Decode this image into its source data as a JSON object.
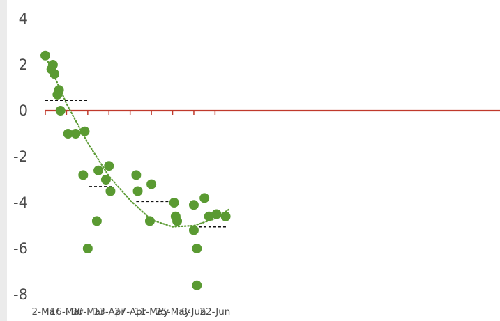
{
  "chart_data": {
    "type": "scatter",
    "title": "",
    "xlabel": "",
    "ylabel": "",
    "x_start_label": "2-Mar",
    "ylim": [
      -8,
      4
    ],
    "y_ticks": [
      4,
      2,
      0,
      -2,
      -4,
      -6,
      -8
    ],
    "x_ticks": [
      "2-Mar",
      "16-Mar",
      "30-Mar",
      "13-Apr",
      "27-Apr",
      "11-May",
      "25-May",
      "8-Jun",
      "22-Jun"
    ],
    "grid": false,
    "zero_line_color": "#c0392b",
    "marker_color": "#5a9a32",
    "trend_color": "#5a9a32",
    "step_line_color": "#111111",
    "series": [
      {
        "points": [
          {
            "x": "2-Mar",
            "y": 2.4
          },
          {
            "x": "6-Mar",
            "y": 1.8
          },
          {
            "x": "7-Mar",
            "y": 2.0
          },
          {
            "x": "8-Mar",
            "y": 1.6
          },
          {
            "x": "10-Mar",
            "y": 0.7
          },
          {
            "x": "11-Mar",
            "y": 0.9
          },
          {
            "x": "12-Mar",
            "y": 0.0
          },
          {
            "x": "17-Mar",
            "y": -1.0
          },
          {
            "x": "22-Mar",
            "y": -1.0
          },
          {
            "x": "27-Mar",
            "y": -2.8
          },
          {
            "x": "28-Mar",
            "y": -0.9
          },
          {
            "x": "30-Mar",
            "y": -6.0
          },
          {
            "x": "5-Apr",
            "y": -4.8
          },
          {
            "x": "6-Apr",
            "y": -2.6
          },
          {
            "x": "11-Apr",
            "y": -3.0
          },
          {
            "x": "13-Apr",
            "y": -2.4
          },
          {
            "x": "14-Apr",
            "y": -3.5
          },
          {
            "x": "1-May",
            "y": -2.8
          },
          {
            "x": "2-May",
            "y": -3.5
          },
          {
            "x": "10-May",
            "y": -4.8
          },
          {
            "x": "11-May",
            "y": -3.2
          },
          {
            "x": "26-May",
            "y": -4.0
          },
          {
            "x": "27-May",
            "y": -4.6
          },
          {
            "x": "28-May",
            "y": -4.8
          },
          {
            "x": "8-Jun",
            "y": -4.1
          },
          {
            "x": "8-Jun",
            "y": -5.2
          },
          {
            "x": "10-Jun",
            "y": -6.0
          },
          {
            "x": "10-Jun",
            "y": -7.6
          },
          {
            "x": "15-Jun",
            "y": -3.8
          },
          {
            "x": "18-Jun",
            "y": -4.6
          },
          {
            "x": "23-Jun",
            "y": -4.5
          },
          {
            "x": "29-Jun",
            "y": -4.6
          }
        ]
      }
    ],
    "trend_line": {
      "style": "dotted",
      "points": [
        {
          "x": "2-Mar",
          "y": 2.4
        },
        {
          "x": "16-Mar",
          "y": 0.3
        },
        {
          "x": "30-Mar",
          "y": -1.4
        },
        {
          "x": "13-Apr",
          "y": -2.85
        },
        {
          "x": "27-Apr",
          "y": -3.9
        },
        {
          "x": "11-May",
          "y": -4.75
        },
        {
          "x": "25-May",
          "y": -5.05
        },
        {
          "x": "8-Jun",
          "y": -5.0
        },
        {
          "x": "22-Jun",
          "y": -4.7
        },
        {
          "x": "1-Jul",
          "y": -4.3
        }
      ]
    },
    "step_lines": [
      {
        "x_start": "2-Mar",
        "x_end": "31-Mar",
        "y": 0.45
      },
      {
        "x_start": "31-Mar",
        "x_end": "15-Apr",
        "y": -3.3
      },
      {
        "x_start": "1-May",
        "x_end": "25-May",
        "y": -3.95
      },
      {
        "x_start": "8-Jun",
        "x_end": "30-Jun",
        "y": -5.05
      }
    ]
  }
}
